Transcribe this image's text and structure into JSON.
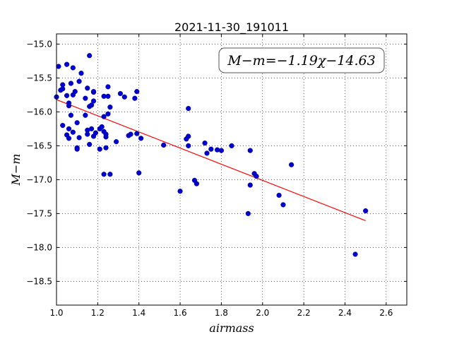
{
  "chart_data": {
    "type": "scatter",
    "title": "2021-11-30_191011",
    "xlabel": "airmass",
    "ylabel": "M−m",
    "annotation": "M−m=−1.19χ−14.63",
    "xlim": [
      1.0,
      2.7
    ],
    "ylim": [
      -18.85,
      -14.85
    ],
    "xticks": [
      "1.0",
      "1.2",
      "1.4",
      "1.6",
      "1.8",
      "2.0",
      "2.2",
      "2.4",
      "2.6"
    ],
    "yticks": [
      "−15.0",
      "−15.5",
      "−16.0",
      "−16.5",
      "−17.0",
      "−17.5",
      "−18.0",
      "−18.5"
    ],
    "grid": true,
    "fit": {
      "slope": -1.19,
      "intercept": -14.63,
      "x_range": [
        1.0,
        2.5
      ],
      "color": "#ff0000"
    },
    "point_color": "#0000cc",
    "points": [
      [
        1.0,
        -15.78
      ],
      [
        1.01,
        -15.33
      ],
      [
        1.02,
        -15.68
      ],
      [
        1.03,
        -15.6
      ],
      [
        1.03,
        -15.66
      ],
      [
        1.03,
        -16.2
      ],
      [
        1.05,
        -15.3
      ],
      [
        1.05,
        -15.76
      ],
      [
        1.05,
        -16.34
      ],
      [
        1.06,
        -15.87
      ],
      [
        1.06,
        -15.91
      ],
      [
        1.06,
        -16.39
      ],
      [
        1.06,
        -16.25
      ],
      [
        1.07,
        -15.58
      ],
      [
        1.07,
        -16.05
      ],
      [
        1.08,
        -15.75
      ],
      [
        1.08,
        -16.3
      ],
      [
        1.08,
        -15.35
      ],
      [
        1.09,
        -15.7
      ],
      [
        1.1,
        -16.16
      ],
      [
        1.1,
        -16.53
      ],
      [
        1.1,
        -16.55
      ],
      [
        1.11,
        -15.55
      ],
      [
        1.11,
        -16.38
      ],
      [
        1.12,
        -15.43
      ],
      [
        1.14,
        -16.05
      ],
      [
        1.14,
        -15.8
      ],
      [
        1.15,
        -15.65
      ],
      [
        1.15,
        -16.27
      ],
      [
        1.15,
        -16.33
      ],
      [
        1.16,
        -15.17
      ],
      [
        1.16,
        -16.48
      ],
      [
        1.16,
        -15.92
      ],
      [
        1.17,
        -16.25
      ],
      [
        1.17,
        -15.9
      ],
      [
        1.18,
        -15.71
      ],
      [
        1.18,
        -15.84
      ],
      [
        1.18,
        -15.7
      ],
      [
        1.18,
        -16.36
      ],
      [
        1.19,
        -16.31
      ],
      [
        1.21,
        -16.25
      ],
      [
        1.21,
        -16.55
      ],
      [
        1.22,
        -16.22
      ],
      [
        1.23,
        -16.07
      ],
      [
        1.23,
        -16.29
      ],
      [
        1.23,
        -15.77
      ],
      [
        1.23,
        -16.92
      ],
      [
        1.24,
        -16.37
      ],
      [
        1.24,
        -16.53
      ],
      [
        1.24,
        -16.33
      ],
      [
        1.25,
        -16.03
      ],
      [
        1.25,
        -15.77
      ],
      [
        1.25,
        -15.63
      ],
      [
        1.26,
        -16.92
      ],
      [
        1.26,
        -15.93
      ],
      [
        1.29,
        -16.44
      ],
      [
        1.31,
        -15.73
      ],
      [
        1.33,
        -15.78
      ],
      [
        1.35,
        -16.35
      ],
      [
        1.36,
        -16.33
      ],
      [
        1.38,
        -15.8
      ],
      [
        1.39,
        -16.32
      ],
      [
        1.39,
        -15.7
      ],
      [
        1.4,
        -16.9
      ],
      [
        1.41,
        -16.39
      ],
      [
        1.52,
        -16.49
      ],
      [
        1.6,
        -17.17
      ],
      [
        1.63,
        -16.4
      ],
      [
        1.64,
        -16.36
      ],
      [
        1.64,
        -15.95
      ],
      [
        1.64,
        -16.5
      ],
      [
        1.67,
        -17.01
      ],
      [
        1.68,
        -17.06
      ],
      [
        1.72,
        -16.46
      ],
      [
        1.73,
        -16.61
      ],
      [
        1.75,
        -16.55
      ],
      [
        1.78,
        -16.56
      ],
      [
        1.8,
        -16.57
      ],
      [
        1.85,
        -16.5
      ],
      [
        1.93,
        -17.5
      ],
      [
        1.94,
        -17.08
      ],
      [
        1.94,
        -16.57
      ],
      [
        1.96,
        -16.91
      ],
      [
        1.97,
        -16.95
      ],
      [
        2.08,
        -17.23
      ],
      [
        2.1,
        -17.37
      ],
      [
        2.14,
        -16.78
      ],
      [
        2.45,
        -18.1
      ],
      [
        2.5,
        -17.46
      ]
    ]
  }
}
